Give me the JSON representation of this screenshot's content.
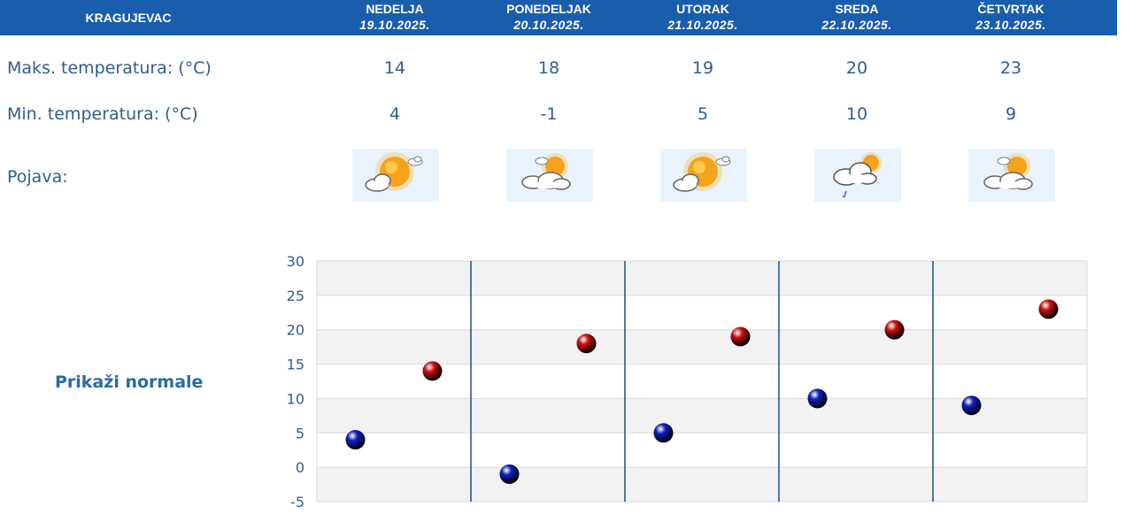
{
  "header": {
    "city": "KRAGUJEVAC",
    "days": [
      {
        "name": "NEDELJA",
        "date": "19.10.2025."
      },
      {
        "name": "PONEDELJAK",
        "date": "20.10.2025."
      },
      {
        "name": "UTORAK",
        "date": "21.10.2025."
      },
      {
        "name": "SREDA",
        "date": "22.10.2025."
      },
      {
        "name": "ČETVRTAK",
        "date": "23.10.2025."
      }
    ]
  },
  "rows": {
    "max_label": "Maks. temperatura: (°C)",
    "min_label": "Min. temperatura: (°C)",
    "phenomenon_label": "Pojava:",
    "max": [
      "14",
      "18",
      "19",
      "20",
      "23"
    ],
    "min": [
      "4",
      "-1",
      "5",
      "10",
      "9"
    ],
    "phenomena_icons": [
      "sun-cloud-icon",
      "cloud-sun-icon",
      "sun-cloud-icon",
      "cloud-rain-icon",
      "cloud-sun-icon"
    ]
  },
  "normals_link": "Prikaži normale",
  "colors": {
    "header_bg": "#1a5dad",
    "text": "#2e5f8f",
    "max_marker": "#d01010",
    "min_marker": "#1020c0",
    "grid_band": "#f2f2f2",
    "divider": "#1a4f86"
  },
  "chart_data": {
    "type": "scatter",
    "categories": [
      "19.10.2025.",
      "20.10.2025.",
      "21.10.2025.",
      "22.10.2025.",
      "23.10.2025."
    ],
    "series": [
      {
        "values": [
          4,
          -1,
          5,
          10,
          9
        ],
        "color": "#1020c0"
      },
      {
        "values": [
          14,
          18,
          19,
          20,
          23
        ],
        "color": "#d01010"
      }
    ],
    "ylim": [
      -5,
      30
    ],
    "yticks": [
      30,
      25,
      20,
      15,
      10,
      5,
      0,
      -5
    ],
    "grid": true
  }
}
